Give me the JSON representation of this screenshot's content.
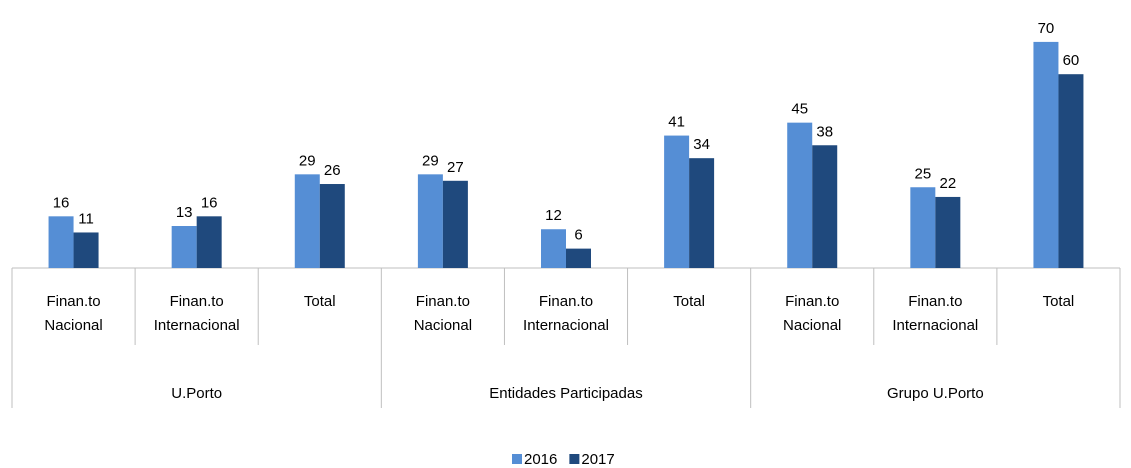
{
  "chart_data": {
    "type": "bar",
    "categories": [
      "Finan.to Nacional",
      "Finan.to Internacional",
      "Total",
      "Finan.to Nacional",
      "Finan.to Internacional",
      "Total",
      "Finan.to Nacional",
      "Finan.to Internacional",
      "Total"
    ],
    "groups": [
      "U.Porto",
      "Entidades Participadas",
      "Grupo U.Porto"
    ],
    "series": [
      {
        "name": "2016",
        "color": "#558ed5",
        "values": [
          16,
          13,
          29,
          29,
          12,
          41,
          45,
          25,
          70
        ]
      },
      {
        "name": "2017",
        "color": "#1f497d",
        "values": [
          11,
          16,
          26,
          27,
          6,
          34,
          38,
          22,
          60
        ]
      }
    ],
    "legend": "bottom"
  }
}
